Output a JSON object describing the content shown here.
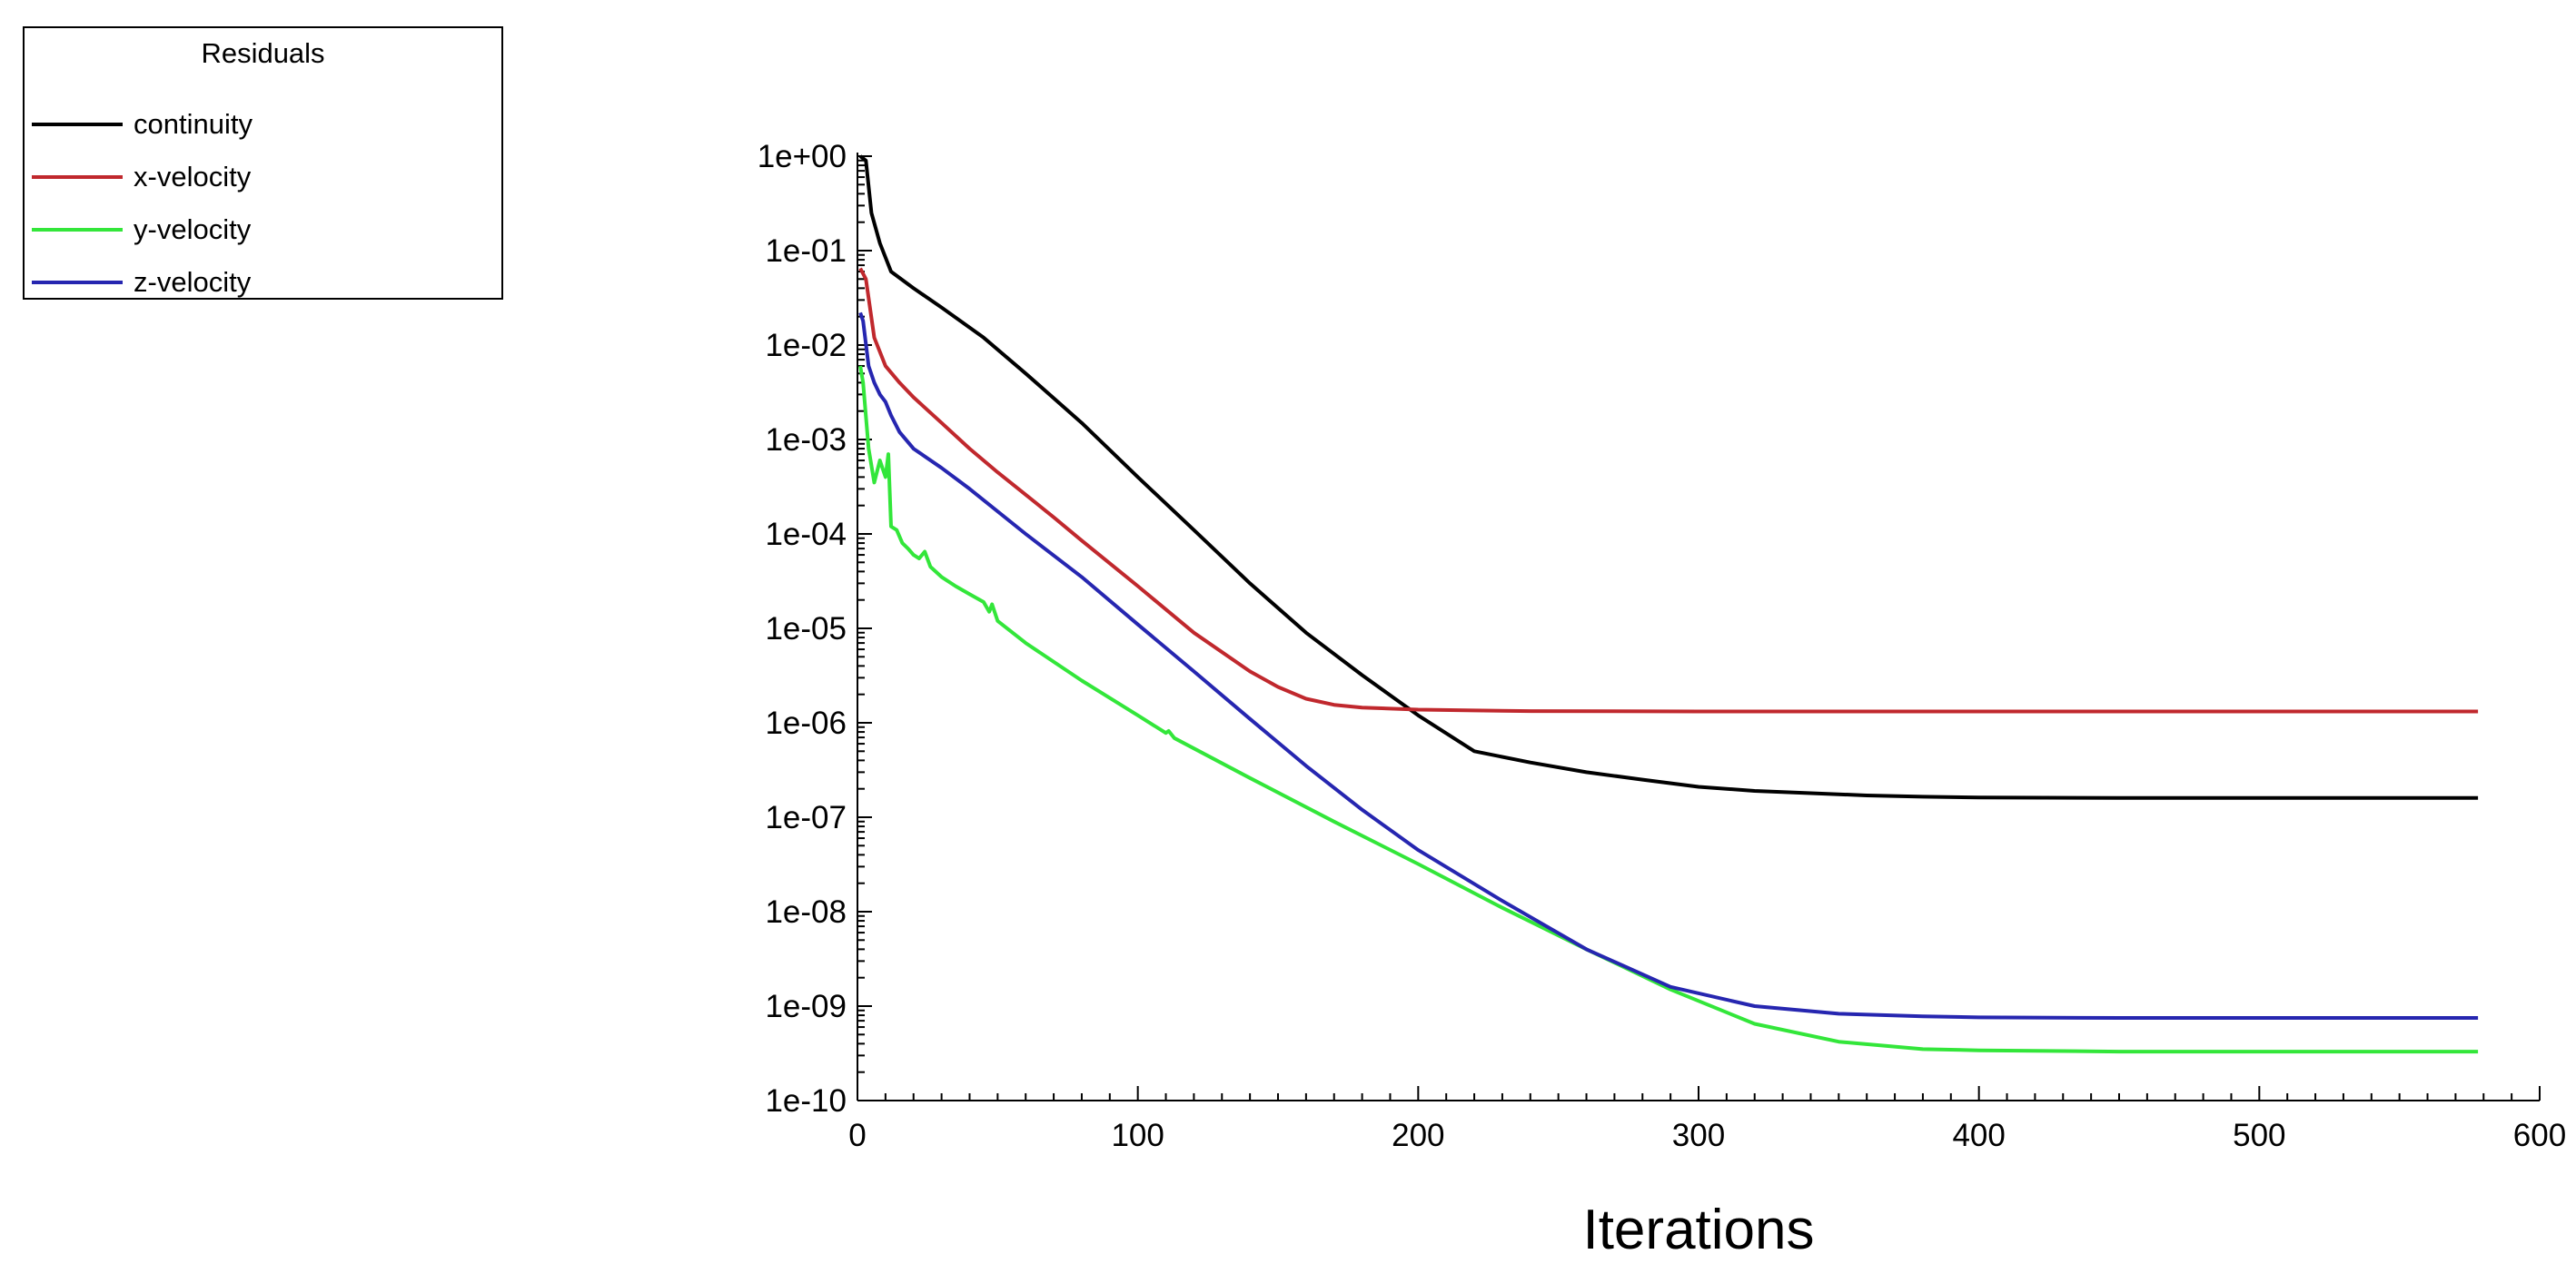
{
  "chart_data": {
    "type": "line",
    "xlabel": "Iterations",
    "ylabel": "",
    "xlim": [
      0,
      600
    ],
    "ylim": [
      1e-10,
      1
    ],
    "yscale": "log",
    "x_ticks": [
      "0",
      "100",
      "200",
      "300",
      "400",
      "500",
      "600"
    ],
    "y_ticks": [
      "1e+00",
      "1e-01",
      "1e-02",
      "1e-03",
      "1e-04",
      "1e-05",
      "1e-06",
      "1e-07",
      "1e-08",
      "1e-09",
      "1e-10"
    ],
    "legend": {
      "title": "Residuals",
      "position": "top-left"
    },
    "series": [
      {
        "name": "continuity",
        "color": "#000000",
        "x": [
          1,
          3,
          5,
          8,
          12,
          20,
          30,
          45,
          60,
          80,
          100,
          120,
          140,
          160,
          180,
          200,
          220,
          240,
          260,
          280,
          300,
          320,
          340,
          360,
          380,
          400,
          450,
          500,
          578
        ],
        "y": [
          1.0,
          0.9,
          0.25,
          0.12,
          0.06,
          0.04,
          0.025,
          0.012,
          0.005,
          0.0015,
          0.0004,
          0.00011,
          3e-05,
          9e-06,
          3.2e-06,
          1.2e-06,
          5e-07,
          3.8e-07,
          3e-07,
          2.5e-07,
          2.1e-07,
          1.9e-07,
          1.8e-07,
          1.7e-07,
          1.65e-07,
          1.62e-07,
          1.6e-07,
          1.6e-07,
          1.6e-07
        ]
      },
      {
        "name": "x-velocity",
        "color": "#c0282d",
        "x": [
          1,
          3,
          6,
          10,
          15,
          20,
          30,
          40,
          50,
          60,
          70,
          80,
          100,
          120,
          140,
          150,
          160,
          170,
          180,
          200,
          220,
          240,
          300,
          400,
          500,
          578
        ],
        "y": [
          0.065,
          0.05,
          0.012,
          0.006,
          0.004,
          0.0028,
          0.0015,
          0.0008,
          0.00045,
          0.00026,
          0.00015,
          8.5e-05,
          2.8e-05,
          9e-06,
          3.5e-06,
          2.4e-06,
          1.8e-06,
          1.55e-06,
          1.45e-06,
          1.38e-06,
          1.35e-06,
          1.33e-06,
          1.32e-06,
          1.32e-06,
          1.32e-06,
          1.32e-06
        ]
      },
      {
        "name": "y-velocity",
        "color": "#33e63a",
        "x": [
          1,
          2,
          4,
          6,
          8,
          10,
          11,
          12,
          14,
          16,
          18,
          20,
          22,
          24,
          26,
          30,
          35,
          40,
          45,
          47,
          48,
          50,
          60,
          80,
          100,
          110,
          111,
          113,
          140,
          170,
          200,
          230,
          260,
          290,
          320,
          350,
          380,
          400,
          450,
          500,
          578
        ],
        "y": [
          0.006,
          0.004,
          0.0008,
          0.00035,
          0.0006,
          0.0004,
          0.0007,
          0.00012,
          0.00011,
          8e-05,
          7e-05,
          6e-05,
          5.5e-05,
          6.5e-05,
          4.5e-05,
          3.5e-05,
          2.8e-05,
          2.3e-05,
          1.9e-05,
          1.5e-05,
          1.8e-05,
          1.2e-05,
          7e-06,
          2.8e-06,
          1.2e-06,
          7.8e-07,
          8.2e-07,
          6.9e-07,
          2.6e-07,
          9e-08,
          3.2e-08,
          1.1e-08,
          4e-09,
          1.5e-09,
          6.5e-10,
          4.2e-10,
          3.5e-10,
          3.4e-10,
          3.3e-10,
          3.3e-10,
          3.3e-10
        ]
      },
      {
        "name": "z-velocity",
        "color": "#2626b0",
        "x": [
          1,
          2,
          4,
          6,
          8,
          10,
          12,
          15,
          20,
          30,
          40,
          60,
          80,
          100,
          120,
          140,
          160,
          180,
          200,
          230,
          260,
          290,
          320,
          350,
          380,
          400,
          450,
          500,
          578
        ],
        "y": [
          0.022,
          0.018,
          0.006,
          0.004,
          0.003,
          0.0025,
          0.0018,
          0.0012,
          0.0008,
          0.0005,
          0.0003,
          0.0001,
          3.5e-05,
          1.1e-05,
          3.5e-06,
          1.1e-06,
          3.5e-07,
          1.2e-07,
          4.5e-08,
          1.3e-08,
          4e-09,
          1.6e-09,
          1e-09,
          8.3e-10,
          7.8e-10,
          7.6e-10,
          7.5e-10,
          7.5e-10,
          7.5e-10
        ]
      }
    ]
  }
}
